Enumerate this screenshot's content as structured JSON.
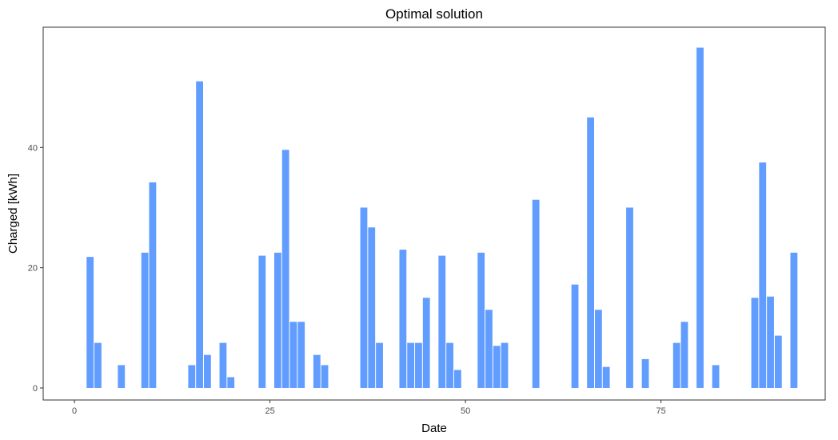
{
  "chart_data": {
    "type": "bar",
    "title": "Optimal solution",
    "xlabel": "Date",
    "ylabel": "Charged [kWh]",
    "xlim": [
      -4,
      96
    ],
    "ylim": [
      -2,
      60
    ],
    "x_ticks": [
      0,
      25,
      50,
      75
    ],
    "y_ticks": [
      0,
      20,
      40
    ],
    "grid": false,
    "bar_color": "#619CFF",
    "x": [
      2,
      3,
      6,
      9,
      10,
      15,
      16,
      17,
      19,
      20,
      24,
      26,
      27,
      28,
      29,
      31,
      32,
      37,
      38,
      39,
      42,
      43,
      44,
      45,
      47,
      48,
      49,
      52,
      53,
      54,
      55,
      59,
      64,
      66,
      67,
      68,
      71,
      73,
      77,
      78,
      80,
      82,
      87,
      88,
      89,
      90,
      92
    ],
    "values": [
      21.8,
      7.5,
      3.8,
      22.5,
      34.2,
      3.8,
      51.0,
      5.5,
      7.5,
      1.8,
      22.0,
      22.5,
      39.6,
      11.0,
      11.0,
      5.5,
      3.8,
      30.0,
      26.7,
      7.5,
      23.0,
      7.5,
      7.5,
      15.0,
      22.0,
      7.5,
      3.0,
      22.5,
      13.0,
      7.0,
      7.5,
      31.3,
      17.2,
      45.0,
      13.0,
      3.5,
      30.0,
      4.8,
      7.5,
      11.0,
      56.6,
      3.8,
      15.0,
      37.5,
      15.2,
      8.7,
      22.5
    ]
  }
}
